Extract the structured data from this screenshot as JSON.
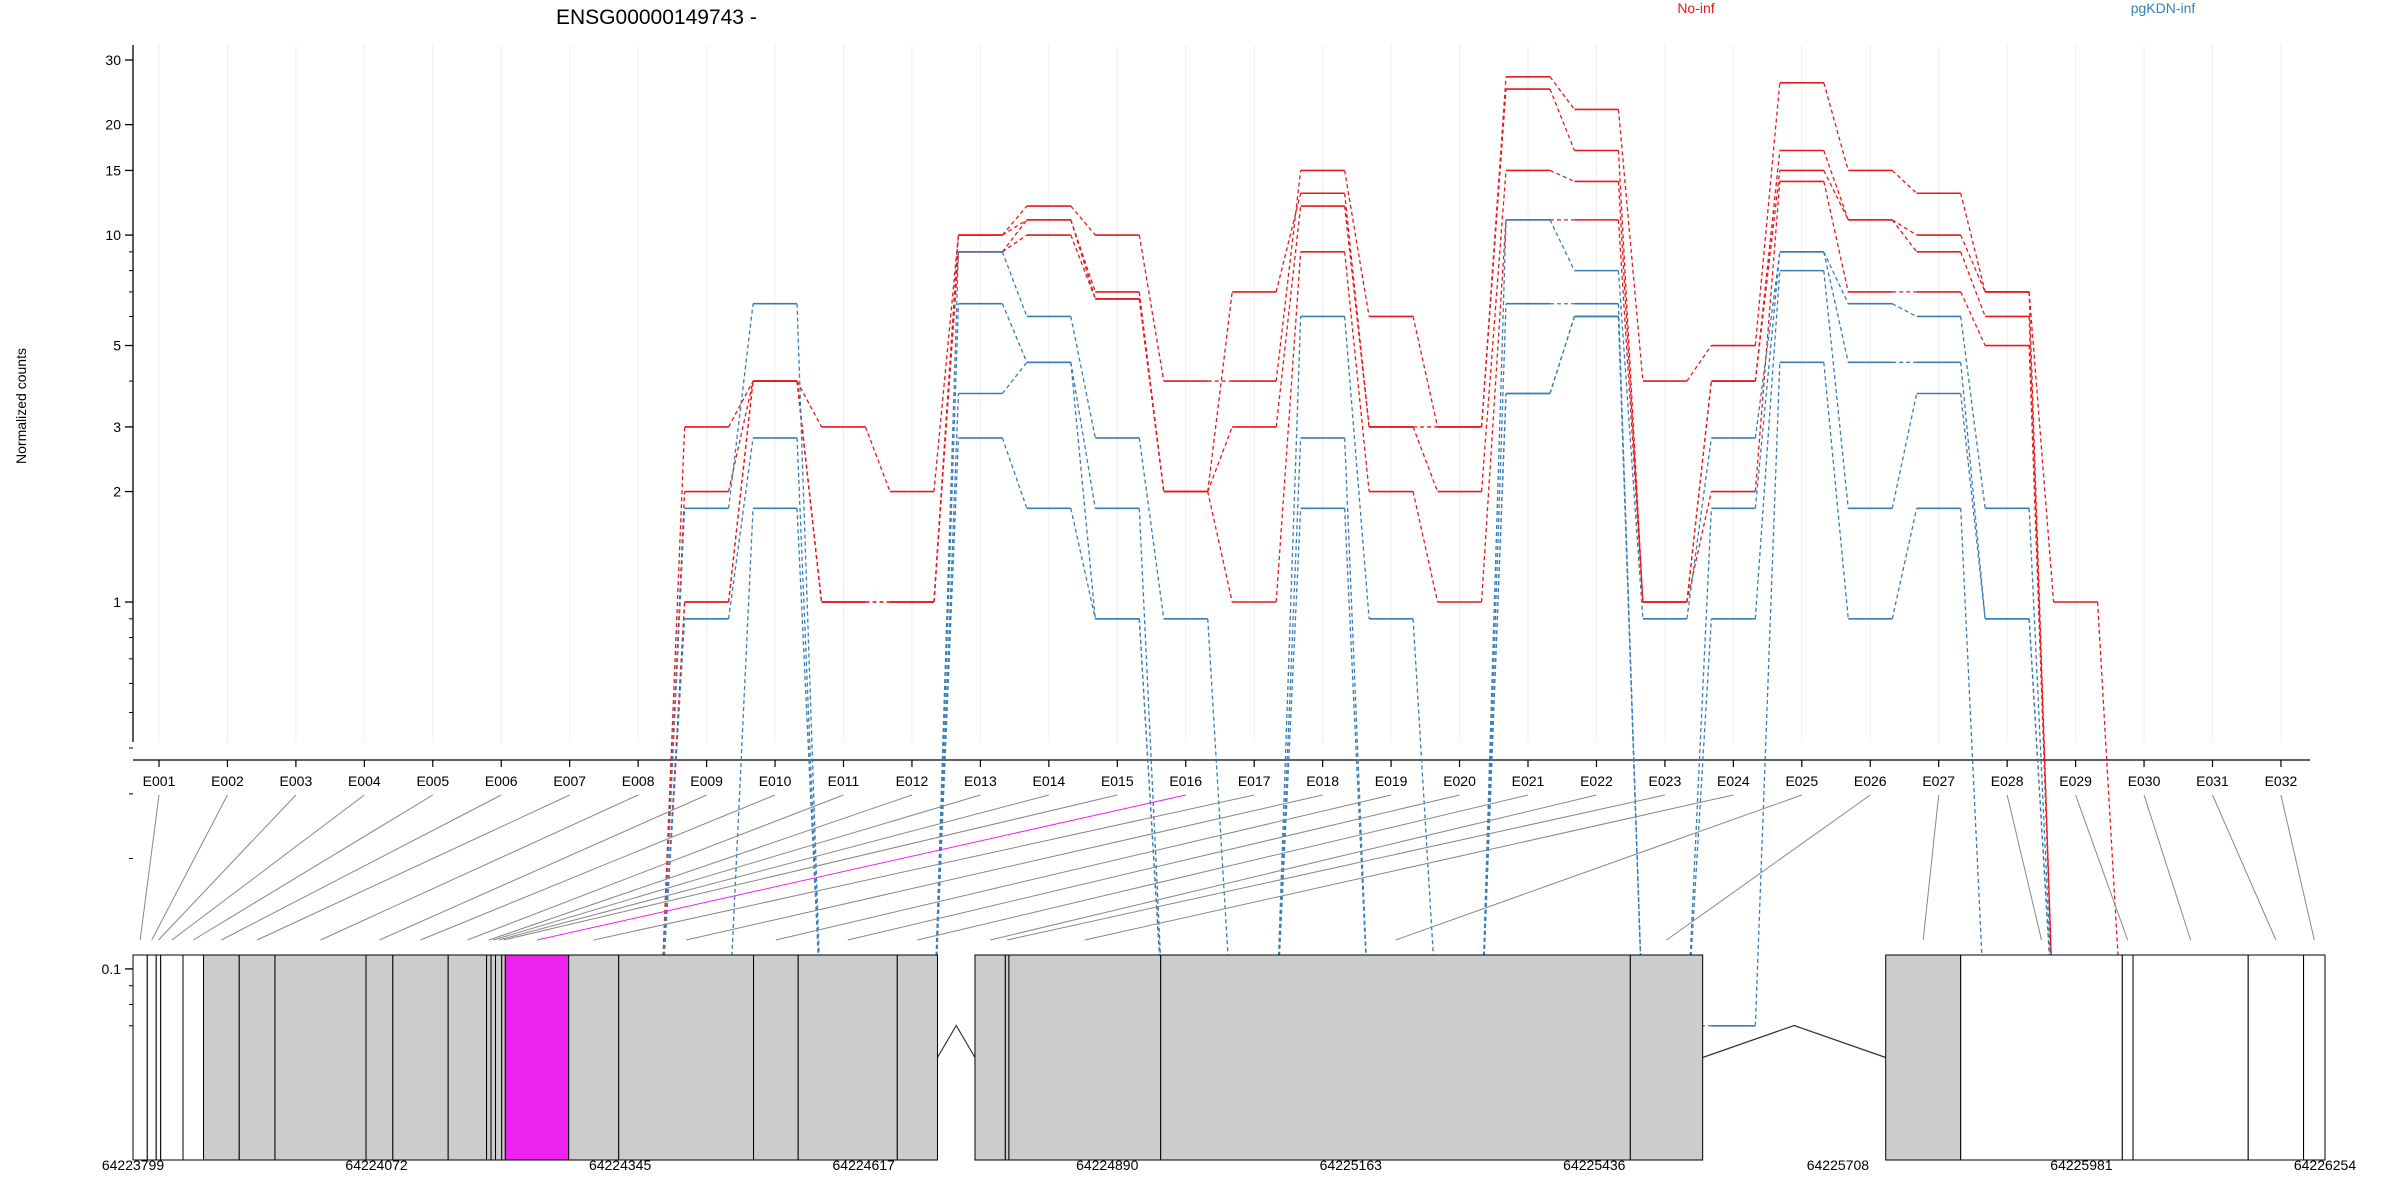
{
  "chart_data": {
    "type": "line",
    "title": "ENSG00000149743 -",
    "ylabel": "Normalized counts",
    "yscale": "log",
    "ylim": [
      0.07,
      35
    ],
    "yticks": [
      0.1,
      1,
      2,
      3,
      5,
      10,
      15,
      20,
      30
    ],
    "legend_position": "top-right",
    "colors": {
      "No-inf": "#e41a1c",
      "pgKDN-inf": "#377eb8",
      "highlight": "#ee22ee",
      "exon_fill": "#cccccc"
    },
    "categories": [
      "E001",
      "E002",
      "E003",
      "E004",
      "E005",
      "E006",
      "E007",
      "E008",
      "E009",
      "E010",
      "E011",
      "E012",
      "E013",
      "E014",
      "E015",
      "E016",
      "E017",
      "E018",
      "E019",
      "E020",
      "E021",
      "E022",
      "E023",
      "E024",
      "E025",
      "E026",
      "E027",
      "E028",
      "E029",
      "E030",
      "E031",
      "E032"
    ],
    "series": [
      {
        "name": "No-inf",
        "group": "No-inf",
        "values": [
          0,
          0,
          0,
          0,
          0,
          0,
          0,
          0,
          3,
          4,
          3,
          2,
          10,
          12,
          10,
          4,
          4,
          15,
          6,
          3,
          27,
          22,
          4,
          5,
          26,
          15,
          13,
          7,
          1,
          0,
          0,
          0
        ]
      },
      {
        "group": "No-inf",
        "values": [
          0,
          0,
          0,
          0,
          0,
          0,
          0,
          0,
          2,
          4,
          1,
          1,
          10,
          11,
          7,
          2,
          7,
          13,
          3,
          3,
          25,
          17,
          1,
          4,
          17,
          11,
          10,
          7,
          0,
          0,
          0,
          0
        ]
      },
      {
        "group": "No-inf",
        "values": [
          0,
          0,
          0,
          0,
          0,
          0,
          0,
          0,
          1,
          4,
          1,
          1,
          9,
          11,
          6.7,
          2,
          3,
          12,
          3,
          2,
          15,
          14,
          1,
          4,
          15,
          11,
          9,
          6,
          0,
          0,
          0,
          0
        ]
      },
      {
        "group": "No-inf",
        "values": [
          0,
          0,
          0,
          0,
          0,
          0,
          0,
          0,
          1,
          4,
          1,
          1,
          9,
          10,
          6.7,
          2,
          1,
          9,
          2,
          1,
          11,
          11,
          1,
          2,
          14,
          7,
          7,
          5,
          0,
          0,
          0,
          0
        ]
      },
      {
        "name": "pgKDN-inf",
        "group": "pgKDN-inf",
        "values": [
          0,
          0,
          0,
          0,
          0,
          0,
          0,
          0,
          1.8,
          6.5,
          0,
          0,
          9,
          6,
          2.8,
          0.9,
          0,
          6,
          0.9,
          0,
          11,
          8,
          0.9,
          2.8,
          9,
          6.5,
          6,
          1.8,
          0,
          0,
          0,
          0
        ]
      },
      {
        "group": "pgKDN-inf",
        "values": [
          0,
          0,
          0,
          0,
          0,
          0,
          0,
          0,
          0.9,
          2.8,
          0,
          0,
          6.5,
          4.5,
          1.8,
          0,
          0,
          2.8,
          0,
          0,
          6.5,
          6.5,
          0,
          1.8,
          9,
          4.5,
          4.5,
          0.9,
          0,
          0,
          0,
          0
        ]
      },
      {
        "group": "pgKDN-inf",
        "values": [
          0,
          0,
          0,
          0,
          0,
          0,
          0,
          0,
          0,
          1.8,
          0,
          0,
          3.7,
          4.5,
          0.9,
          0,
          0,
          1.8,
          0,
          0,
          3.7,
          6,
          0,
          0.9,
          8,
          1.8,
          3.7,
          0.9,
          0,
          0,
          0,
          0
        ]
      },
      {
        "group": "pgKDN-inf",
        "values": [
          0,
          0,
          0,
          0,
          0,
          0,
          0,
          0,
          0,
          0,
          0,
          0,
          2.8,
          1.8,
          0.9,
          0,
          0,
          0,
          0,
          0,
          3.7,
          6,
          0,
          0,
          4.5,
          0.9,
          1.8,
          0,
          0,
          0,
          0,
          0
        ]
      }
    ],
    "highlight_exon": "E016",
    "gene_model": {
      "coordinate_ticks": [
        "64223799",
        "64224072",
        "64224345",
        "64224617",
        "64224890",
        "64225163",
        "64225436",
        "64225708",
        "64225981",
        "64226254"
      ],
      "coordinate_range": [
        64223799,
        64226254
      ],
      "exons": [
        {
          "id": "E001",
          "start": 64223799,
          "end": 64223815,
          "fill": "white"
        },
        {
          "id": "E002",
          "start": 64223815,
          "end": 64223825,
          "fill": "white"
        },
        {
          "id": "E003",
          "start": 64223825,
          "end": 64223830,
          "fill": "white"
        },
        {
          "id": "E004",
          "start": 64223830,
          "end": 64223855,
          "fill": "white"
        },
        {
          "id": "E005",
          "start": 64223855,
          "end": 64223878,
          "fill": "white"
        },
        {
          "id": "E006",
          "start": 64223878,
          "end": 64223918,
          "fill": "gray"
        },
        {
          "id": "E007",
          "start": 64223918,
          "end": 64223958,
          "fill": "gray"
        },
        {
          "id": "E008",
          "start": 64223958,
          "end": 64224060,
          "fill": "gray"
        },
        {
          "id": "E009",
          "start": 64224060,
          "end": 64224090,
          "fill": "gray"
        },
        {
          "id": "E010",
          "start": 64224090,
          "end": 64224152,
          "fill": "gray"
        },
        {
          "id": "E011",
          "start": 64224152,
          "end": 64224195,
          "fill": "gray"
        },
        {
          "id": "E012",
          "start": 64224195,
          "end": 64224200,
          "fill": "gray"
        },
        {
          "id": "E013",
          "start": 64224200,
          "end": 64224205,
          "fill": "gray"
        },
        {
          "id": "E014",
          "start": 64224205,
          "end": 64224212,
          "fill": "gray"
        },
        {
          "id": "E015",
          "start": 64224212,
          "end": 64224216,
          "fill": "gray"
        },
        {
          "id": "E016",
          "start": 64224216,
          "end": 64224287,
          "fill": "highlight"
        },
        {
          "id": "E017",
          "start": 64224287,
          "end": 64224343,
          "fill": "gray"
        },
        {
          "id": "E018",
          "start": 64224343,
          "end": 64224494,
          "fill": "gray"
        },
        {
          "id": "E019",
          "start": 64224494,
          "end": 64224544,
          "fill": "gray"
        },
        {
          "id": "E020",
          "start": 64224544,
          "end": 64224655,
          "fill": "gray"
        },
        {
          "id": "E021",
          "start": 64224655,
          "end": 64224700,
          "fill": "gray"
        },
        {
          "id": "E022",
          "start": 64224742,
          "end": 64224776,
          "fill": "gray"
        },
        {
          "id": "E023",
          "start": 64224776,
          "end": 64224780,
          "fill": "gray"
        },
        {
          "id": "E024",
          "start": 64224780,
          "end": 64224950,
          "fill": "gray"
        },
        {
          "id": "E025",
          "start": 64224950,
          "end": 64225476,
          "fill": "gray"
        },
        {
          "id": "E026",
          "start": 64225476,
          "end": 64225557,
          "fill": "gray"
        },
        {
          "id": "E027",
          "start": 64225762,
          "end": 64225846,
          "fill": "gray"
        },
        {
          "id": "E028",
          "start": 64225846,
          "end": 64226027,
          "fill": "white"
        },
        {
          "id": "E029",
          "start": 64226027,
          "end": 64226039,
          "fill": "white"
        },
        {
          "id": "E030",
          "start": 64226039,
          "end": 64226168,
          "fill": "white"
        },
        {
          "id": "E031",
          "start": 64226168,
          "end": 64226230,
          "fill": "white"
        },
        {
          "id": "E032",
          "start": 64226230,
          "end": 64226254,
          "fill": "white"
        }
      ],
      "introns": [
        [
          64224700,
          64224742
        ],
        [
          64225557,
          64225762
        ]
      ]
    }
  }
}
